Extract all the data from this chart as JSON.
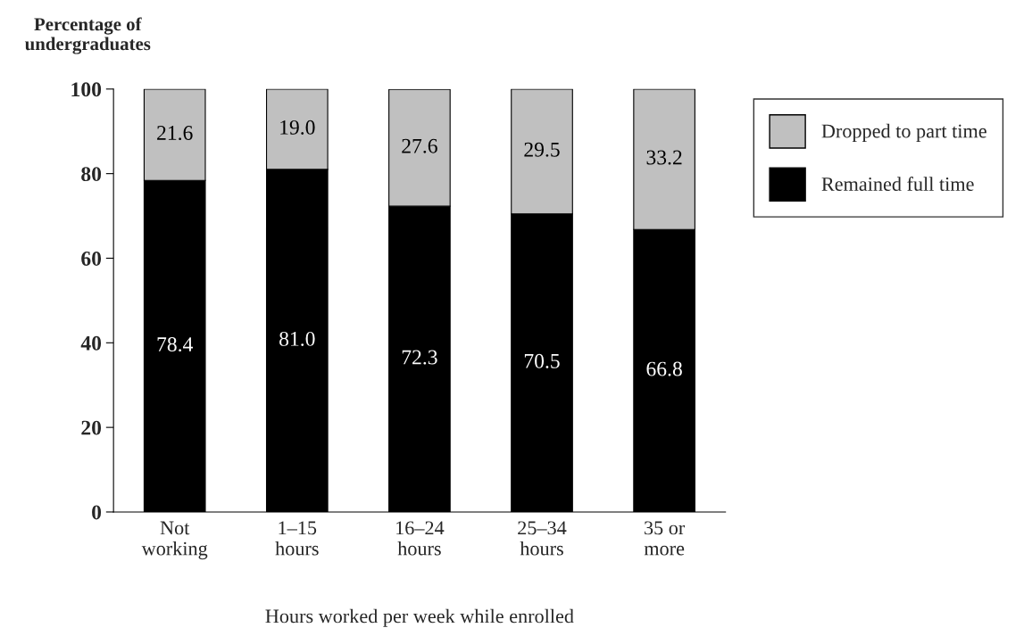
{
  "chart_data": {
    "type": "bar",
    "stacked": true,
    "ylabel": "Percentage of\nundergraduates",
    "xlabel": "Hours worked per week while enrolled",
    "categories": [
      "Not\nworking",
      "1–15\nhours",
      "16–24\nhours",
      "25–34\nhours",
      "35 or\nmore"
    ],
    "series": [
      {
        "name": "Remained full time",
        "color": "#000000",
        "values": [
          78.4,
          81.0,
          72.3,
          70.5,
          66.8
        ],
        "value_labels": [
          "78.4",
          "81.0",
          "72.3",
          "70.5",
          "66.8"
        ]
      },
      {
        "name": "Dropped to part time",
        "color": "#c0c0c0",
        "values": [
          21.6,
          19.0,
          27.6,
          29.5,
          33.2
        ],
        "value_labels": [
          "21.6",
          "19.0",
          "27.6",
          "29.5",
          "33.2"
        ]
      }
    ],
    "ylim": [
      0,
      100
    ],
    "yticks": [
      0,
      20,
      40,
      60,
      80,
      100
    ],
    "grid": false,
    "legend": "top right"
  }
}
